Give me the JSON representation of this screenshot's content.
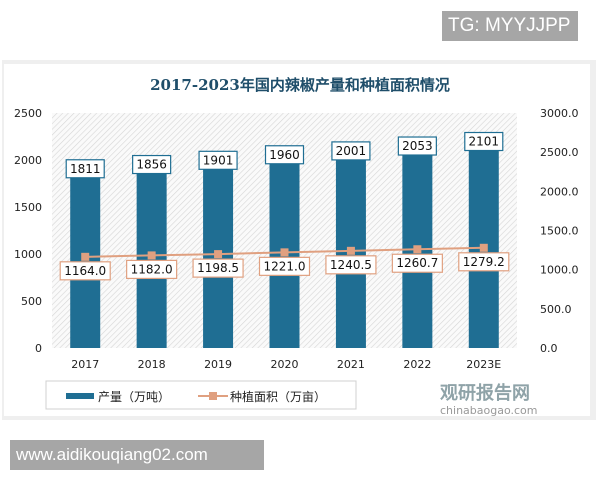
{
  "watermark_top": "TG: MYYJJPP",
  "watermark_bottom": "www.aidikouqiang02.com",
  "logo_text": "观研报告网",
  "logo_sub": "chinabaogao.com",
  "chart_data": {
    "type": "bar+line",
    "title": "2017-2023年国内辣椒产量和种植面积情况",
    "categories": [
      "2017",
      "2018",
      "2019",
      "2020",
      "2021",
      "2022",
      "2023E"
    ],
    "series": [
      {
        "name": "产量（万吨）",
        "type": "bar",
        "axis": "left",
        "color": "#1f6e93",
        "values": [
          1811,
          1856,
          1901,
          1960,
          2001,
          2053,
          2101
        ]
      },
      {
        "name": "种植面积（万亩）",
        "type": "line",
        "axis": "right",
        "color": "#e0a080",
        "values": [
          1164.0,
          1182.0,
          1198.5,
          1221.0,
          1240.5,
          1260.7,
          1279.2
        ]
      }
    ],
    "y_left": {
      "range": [
        0,
        2500
      ],
      "ticks": [
        "0",
        "500",
        "1000",
        "1500",
        "2000",
        "2500"
      ]
    },
    "y_right": {
      "range": [
        0,
        3000
      ],
      "ticks": [
        "0.0",
        "500.0",
        "1000.0",
        "1500.0",
        "2000.0",
        "2500.0",
        "3000.0"
      ]
    },
    "bar_labels": [
      "1811",
      "1856",
      "1901",
      "1960",
      "2001",
      "2053",
      "2101"
    ],
    "line_labels": [
      "1164.0",
      "1182.0",
      "1198.5",
      "1221.0",
      "1240.5",
      "1260.7",
      "1279.2"
    ],
    "legend": "bottom"
  }
}
